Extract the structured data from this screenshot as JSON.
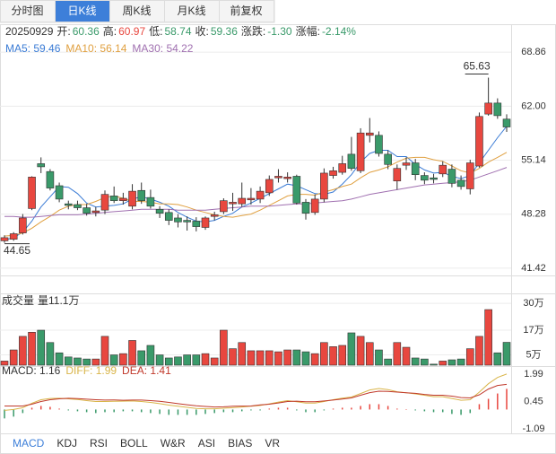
{
  "tabs": [
    {
      "label": "分时图",
      "active": false
    },
    {
      "label": "日K线",
      "active": true
    },
    {
      "label": "周K线",
      "active": false
    },
    {
      "label": "月K线",
      "active": false
    },
    {
      "label": "前复权",
      "active": false
    }
  ],
  "quote": {
    "date": "20250929",
    "items": [
      {
        "label": "开:",
        "value": "60.36",
        "color": "#3a9a6a"
      },
      {
        "label": "高:",
        "value": "60.97",
        "color": "#e8473f"
      },
      {
        "label": "低:",
        "value": "58.74",
        "color": "#3a9a6a"
      },
      {
        "label": "收:",
        "value": "59.36",
        "color": "#3a9a6a"
      },
      {
        "label": "涨跌:",
        "value": "-1.30",
        "color": "#3a9a6a"
      },
      {
        "label": "涨幅:",
        "value": "-2.14%",
        "color": "#3a9a6a"
      }
    ]
  },
  "indicator_tabs": [
    {
      "label": "MACD",
      "active": true
    },
    {
      "label": "KDJ",
      "active": false
    },
    {
      "label": "RSI",
      "active": false
    },
    {
      "label": "BOLL",
      "active": false
    },
    {
      "label": "W&R",
      "active": false
    },
    {
      "label": "ASI",
      "active": false
    },
    {
      "label": "BIAS",
      "active": false
    },
    {
      "label": "VR",
      "active": false
    }
  ],
  "chart_data": [
    {
      "type": "candlestick",
      "up_color": "#e8473f",
      "down_color": "#3a9a6a",
      "grid": true,
      "open": [
        44.9,
        45.1,
        45.9,
        49.0,
        54.7,
        53.7,
        51.9,
        49.6,
        49.5,
        49.1,
        48.5,
        48.8,
        50.6,
        50.0,
        49.3,
        51.3,
        50.4,
        48.9,
        48.5,
        47.8,
        47.5,
        47.4,
        46.6,
        48.0,
        48.6,
        49.6,
        49.6,
        50.1,
        50.2,
        51.0,
        52.9,
        52.8,
        53.1,
        49.8,
        48.5,
        50.2,
        53.2,
        53.6,
        55.9,
        53.8,
        58.3,
        58.3,
        55.9,
        52.5,
        54.5,
        54.8,
        53.2,
        52.9,
        53.4,
        54.0,
        52.6,
        51.5,
        54.4,
        61.0,
        62.4,
        60.36
      ],
      "high": [
        45.6,
        46.0,
        48.3,
        53.1,
        55.5,
        54.0,
        52.3,
        50.0,
        50.0,
        49.6,
        49.2,
        51.3,
        51.8,
        51.0,
        52.1,
        52.3,
        51.4,
        49.3,
        48.9,
        48.3,
        48.0,
        47.9,
        48.0,
        48.6,
        50.3,
        51.0,
        52.3,
        51.6,
        51.8,
        53.2,
        54.0,
        53.6,
        53.3,
        50.2,
        50.8,
        54.1,
        54.3,
        55.7,
        58.1,
        59.2,
        60.5,
        58.8,
        56.4,
        54.6,
        55.5,
        55.3,
        53.6,
        53.4,
        55.0,
        54.6,
        53.2,
        55.2,
        61.2,
        65.63,
        63.0,
        60.97
      ],
      "low": [
        44.65,
        44.9,
        45.7,
        48.8,
        53.5,
        51.3,
        49.8,
        48.9,
        48.8,
        48.1,
        48.0,
        48.3,
        49.7,
        49.5,
        48.9,
        49.6,
        49.0,
        47.8,
        46.9,
        46.6,
        46.2,
        46.1,
        46.3,
        47.5,
        48.3,
        48.7,
        49.2,
        49.5,
        49.7,
        50.6,
        52.3,
        52.3,
        49.5,
        47.6,
        48.2,
        49.8,
        52.8,
        53.3,
        53.8,
        53.5,
        57.4,
        55.6,
        54.0,
        51.4,
        53.9,
        52.6,
        52.1,
        52.2,
        53.0,
        51.7,
        51.4,
        50.8,
        54.2,
        60.8,
        60.4,
        58.74
      ],
      "close": [
        45.3,
        45.8,
        47.8,
        53.0,
        54.3,
        51.6,
        50.2,
        49.4,
        49.1,
        48.4,
        48.7,
        50.8,
        50.0,
        50.3,
        51.2,
        50.0,
        49.3,
        48.4,
        47.5,
        47.3,
        47.3,
        46.7,
        47.8,
        48.2,
        50.0,
        49.8,
        50.3,
        50.3,
        51.2,
        52.7,
        53.1,
        53.0,
        49.7,
        48.4,
        50.2,
        53.5,
        53.8,
        54.7,
        54.1,
        58.6,
        58.6,
        56.0,
        54.6,
        54.1,
        54.8,
        53.3,
        52.6,
        52.7,
        54.5,
        52.2,
        51.8,
        54.8,
        60.7,
        62.4,
        60.8,
        59.36
      ],
      "series": [
        {
          "name": "MA5: 59.46",
          "color": "#3a7bd5",
          "values": [
            45.0,
            45.3,
            46.0,
            47.4,
            49.2,
            50.5,
            51.8,
            51.7,
            50.9,
            49.7,
            49.2,
            49.3,
            49.4,
            49.6,
            50.2,
            50.5,
            50.2,
            49.8,
            49.3,
            48.5,
            47.9,
            47.4,
            47.3,
            47.5,
            48.0,
            48.4,
            49.2,
            49.7,
            50.3,
            50.9,
            51.5,
            52.1,
            51.9,
            51.4,
            50.9,
            50.8,
            51.1,
            52.1,
            53.3,
            54.9,
            56.0,
            56.4,
            56.4,
            55.6,
            55.6,
            54.6,
            53.9,
            53.5,
            53.6,
            53.1,
            52.8,
            53.2,
            54.8,
            56.4,
            58.0,
            59.46
          ]
        },
        {
          "name": "MA10: 56.14",
          "color": "#e0a040",
          "values": [
            45.5,
            45.6,
            45.9,
            46.5,
            47.3,
            48.0,
            48.8,
            49.3,
            49.5,
            49.5,
            49.9,
            50.4,
            50.6,
            50.3,
            49.9,
            49.9,
            49.8,
            49.6,
            49.6,
            49.5,
            49.2,
            48.8,
            48.5,
            48.2,
            48.0,
            47.9,
            48.1,
            48.3,
            48.8,
            49.4,
            50.0,
            50.6,
            50.8,
            50.8,
            50.7,
            51.1,
            51.4,
            51.8,
            52.1,
            52.9,
            53.6,
            53.9,
            54.3,
            54.9,
            55.4,
            55.5,
            55.5,
            55.2,
            55.0,
            54.4,
            53.8,
            53.5,
            54.1,
            54.9,
            55.5,
            56.14
          ]
        },
        {
          "name": "MA30: 54.22",
          "color": "#a070b0",
          "values": [
            48.0,
            48.0,
            47.9,
            47.9,
            48.0,
            48.1,
            48.2,
            48.2,
            48.2,
            48.3,
            48.4,
            48.5,
            48.6,
            48.7,
            48.8,
            48.9,
            48.9,
            48.9,
            48.9,
            48.8,
            48.8,
            48.8,
            48.8,
            48.9,
            49.0,
            49.1,
            49.2,
            49.3,
            49.3,
            49.3,
            49.4,
            49.5,
            49.6,
            49.6,
            49.7,
            49.8,
            49.9,
            50.0,
            50.2,
            50.5,
            50.8,
            51.0,
            51.2,
            51.4,
            51.6,
            51.8,
            52.0,
            52.1,
            52.2,
            52.3,
            52.4,
            52.6,
            53.0,
            53.4,
            53.8,
            54.22
          ]
        }
      ],
      "ylim": [
        40.5,
        72.3
      ],
      "yticks": [
        68.86,
        {
          "value": 62,
          "label": "62.00"
        },
        55.14,
        48.28,
        41.42
      ]
    },
    {
      "type": "bar",
      "title": "成交量",
      "grid": true,
      "series": [
        {
          "name": "量11.1万",
          "values": [
            2,
            7.4,
            14,
            16,
            17,
            11,
            6,
            4,
            3.5,
            3,
            3,
            14,
            5,
            5.6,
            12,
            7,
            9.6,
            5,
            3.5,
            4,
            5,
            5,
            5.6,
            3.5,
            17,
            8,
            11,
            7,
            7,
            7,
            6.5,
            7.4,
            7.4,
            6.5,
            5.6,
            11,
            9,
            9.6,
            15.7,
            14,
            11,
            7.4,
            3,
            11,
            8.7,
            3.5,
            3,
            0.5,
            2,
            2.6,
            3,
            8,
            14,
            27,
            6,
            11.1
          ]
        }
      ],
      "ylim": [
        0,
        34
      ],
      "yticks": [
        {
          "value": 30,
          "label": "30万"
        },
        {
          "value": 17,
          "label": "17万"
        },
        {
          "value": 5,
          "label": "5万"
        }
      ]
    },
    {
      "type": "macd",
      "grid": false,
      "series": [
        {
          "name": "MACD: 1.16",
          "color": "#333333",
          "values": [
            -0.5,
            -0.4,
            -0.2,
            0.1,
            0.2,
            0.15,
            0.05,
            -0.05,
            -0.1,
            -0.15,
            -0.2,
            -0.15,
            -0.15,
            -0.1,
            -0.1,
            -0.15,
            -0.2,
            -0.25,
            -0.3,
            -0.3,
            -0.3,
            -0.3,
            -0.25,
            -0.2,
            -0.15,
            -0.15,
            -0.1,
            -0.05,
            -0.05,
            0.05,
            0.1,
            0.1,
            -0.05,
            -0.15,
            -0.15,
            -0.05,
            0.05,
            0.1,
            0.1,
            0.2,
            0.3,
            0.3,
            0.2,
            0.05,
            0,
            -0.05,
            -0.1,
            -0.15,
            -0.15,
            -0.25,
            -0.3,
            -0.2,
            0.3,
            0.6,
            0.9,
            1.16
          ]
        },
        {
          "name": "DIFF: 1.99",
          "color": "#d9b54a",
          "values": [
            -0.05,
            0,
            0.1,
            0.35,
            0.55,
            0.62,
            0.63,
            0.6,
            0.56,
            0.5,
            0.45,
            0.45,
            0.46,
            0.47,
            0.48,
            0.45,
            0.4,
            0.33,
            0.25,
            0.18,
            0.12,
            0.06,
            0.04,
            0.04,
            0.07,
            0.1,
            0.14,
            0.18,
            0.23,
            0.32,
            0.42,
            0.5,
            0.44,
            0.36,
            0.36,
            0.45,
            0.55,
            0.64,
            0.7,
            0.9,
            1.1,
            1.18,
            1.12,
            1.0,
            0.94,
            0.88,
            0.8,
            0.72,
            0.72,
            0.62,
            0.52,
            0.55,
            0.98,
            1.45,
            1.8,
            1.99
          ]
        },
        {
          "name": "DEA: 1.41",
          "color": "#c0392b",
          "values": [
            0.2,
            0.2,
            0.2,
            0.3,
            0.45,
            0.55,
            0.6,
            0.63,
            0.61,
            0.58,
            0.55,
            0.53,
            0.54,
            0.52,
            0.53,
            0.53,
            0.5,
            0.46,
            0.4,
            0.33,
            0.27,
            0.21,
            0.17,
            0.14,
            0.15,
            0.18,
            0.19,
            0.2,
            0.26,
            0.3,
            0.37,
            0.45,
            0.47,
            0.44,
            0.44,
            0.48,
            0.53,
            0.59,
            0.65,
            0.8,
            0.95,
            1.03,
            1.02,
            0.98,
            0.94,
            0.91,
            0.85,
            0.8,
            0.8,
            0.75,
            0.67,
            0.65,
            0.83,
            1.15,
            1.35,
            1.41
          ]
        }
      ],
      "ylim": [
        -1.34,
        2.34
      ],
      "yticks": [
        1.99,
        0.45,
        -1.09
      ]
    }
  ]
}
